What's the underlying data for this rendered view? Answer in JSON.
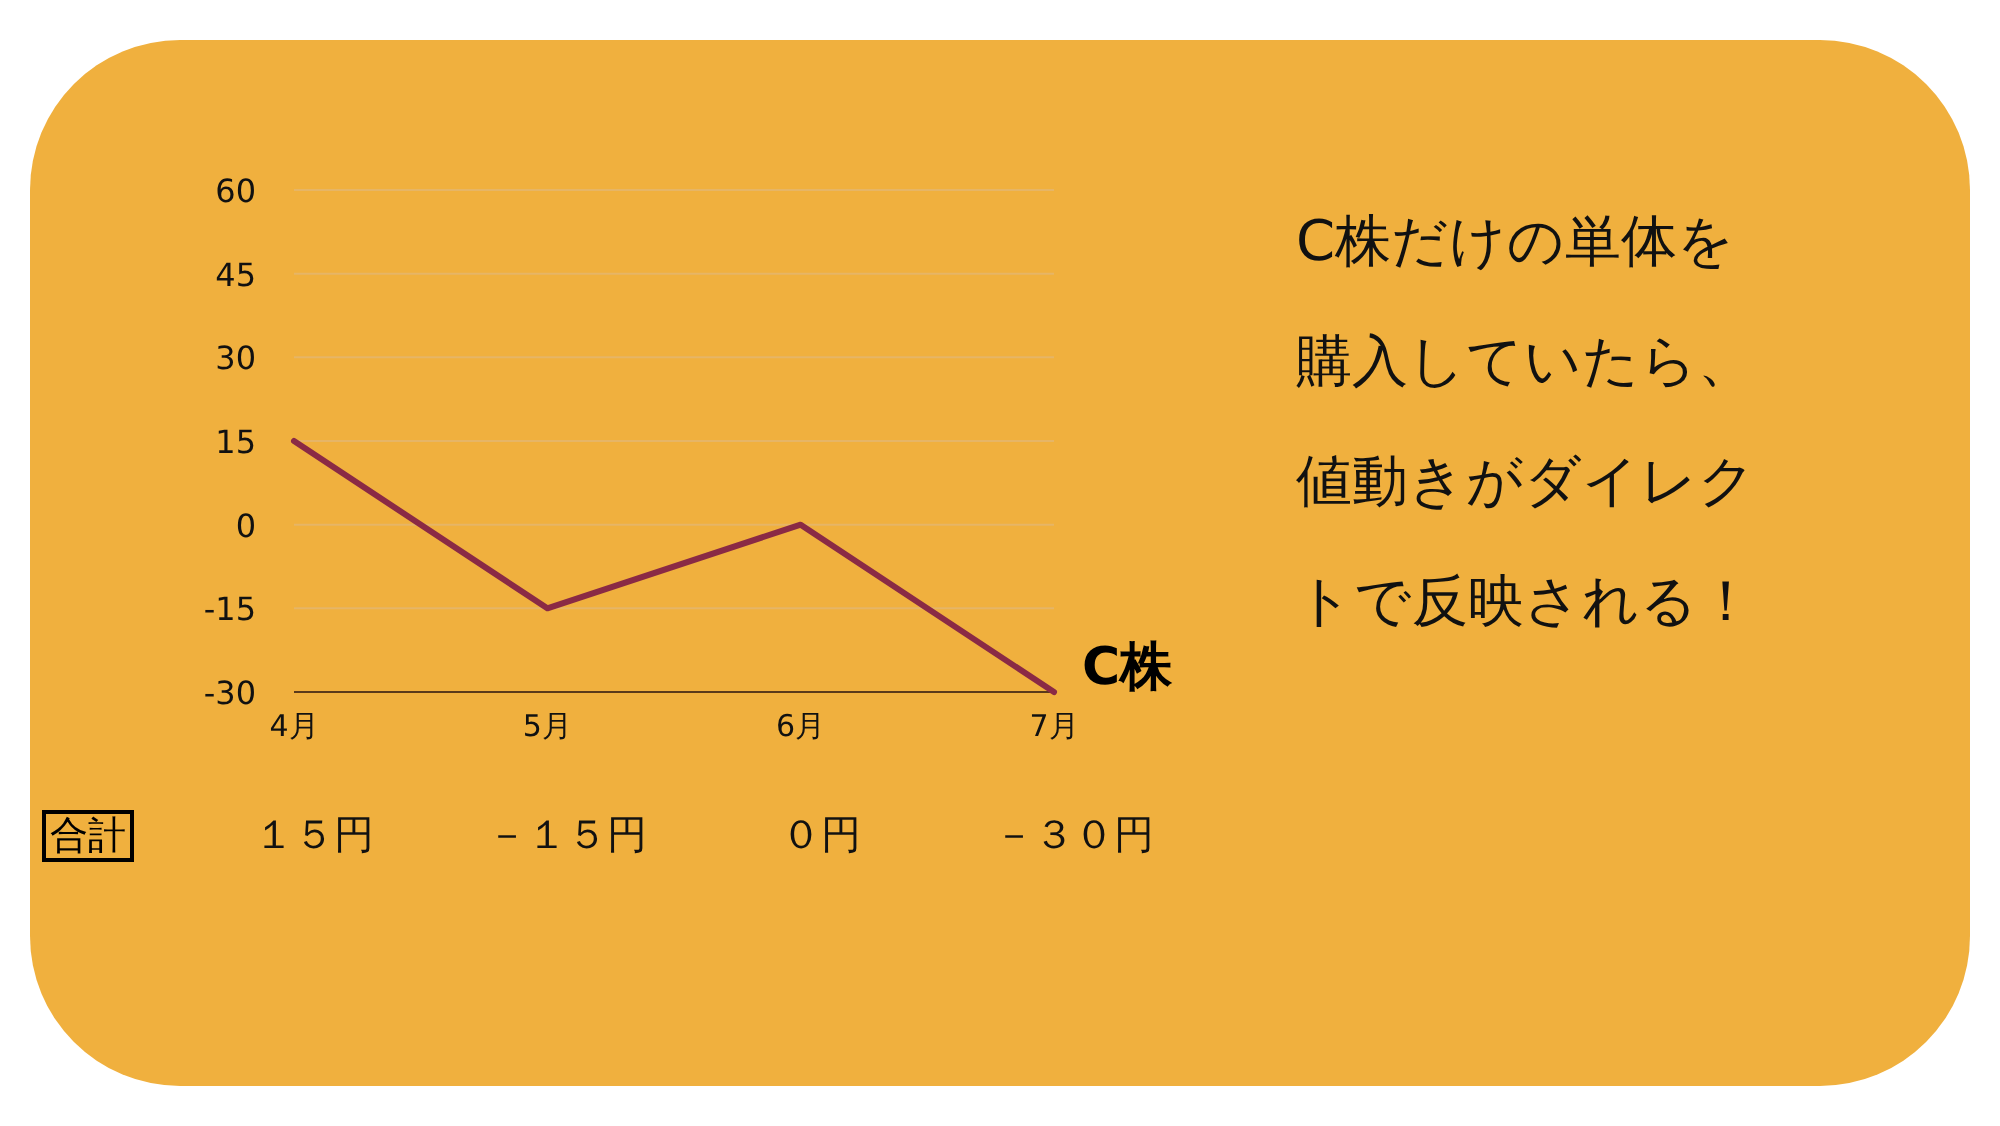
{
  "chart_data": {
    "type": "line",
    "categories": [
      "4月",
      "5月",
      "6月",
      "7月"
    ],
    "series": [
      {
        "name": "C株",
        "color": "#8a2a45",
        "values": [
          15,
          -15,
          0,
          -30
        ]
      }
    ],
    "ylim": [
      -30,
      60
    ],
    "yticks": [
      -30,
      -15,
      0,
      15,
      30,
      45,
      60
    ],
    "grid": "y",
    "annotations": [
      "合計",
      "C株だけの単体を購入していたら、値動きがダイレクトで反映される！",
      "１５円",
      "－１５円",
      "０円",
      "－３０円"
    ]
  }
}
